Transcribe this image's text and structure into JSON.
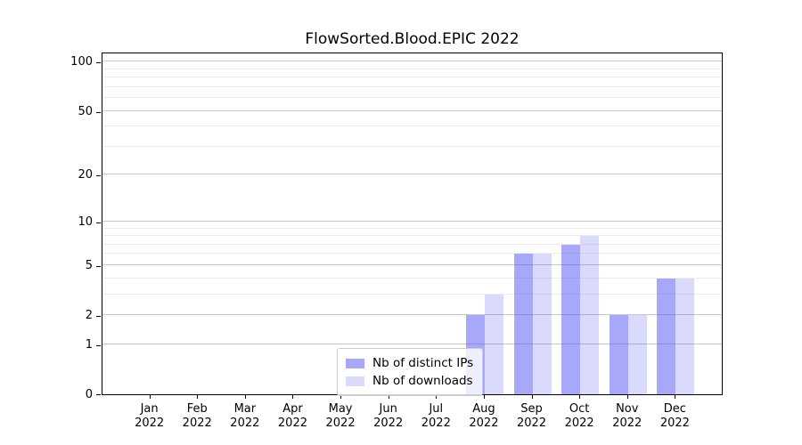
{
  "chart_data": {
    "type": "bar",
    "title": "FlowSorted.Blood.EPIC 2022",
    "year_label": "2022",
    "categories": [
      "Jan",
      "Feb",
      "Mar",
      "Apr",
      "May",
      "Jun",
      "Jul",
      "Aug",
      "Sep",
      "Oct",
      "Nov",
      "Dec"
    ],
    "series": [
      {
        "name": "Nb of distinct IPs",
        "color": "rgba(88,88,248,0.52)",
        "values": [
          0,
          0,
          0,
          0,
          0,
          0,
          0,
          2,
          6,
          7,
          2,
          4
        ]
      },
      {
        "name": "Nb of downloads",
        "color": "rgba(88,88,248,0.22)",
        "values": [
          0,
          0,
          0,
          0,
          0,
          0,
          0,
          3,
          6,
          8,
          2,
          4
        ]
      }
    ],
    "y_scale": "log1p",
    "y_major_ticks": [
      0,
      1,
      2,
      5,
      10,
      20,
      50,
      100
    ],
    "y_minor_ticks": [
      3,
      4,
      6,
      7,
      8,
      9,
      30,
      40,
      60,
      70,
      80,
      90
    ],
    "ylim": [
      0,
      112
    ],
    "xlabel": "",
    "ylabel": "",
    "grid": true,
    "legend_position": "bottom-center"
  },
  "colors": {
    "bar_distinct_ips_fill": "rgba(88,88,248,0.52)",
    "bar_downloads_fill": "rgba(88,88,248,0.22)",
    "grid_major": "#c6c6c6",
    "grid_minor": "#ececec",
    "spine": "#000000",
    "legend_border": "#cccccc"
  }
}
